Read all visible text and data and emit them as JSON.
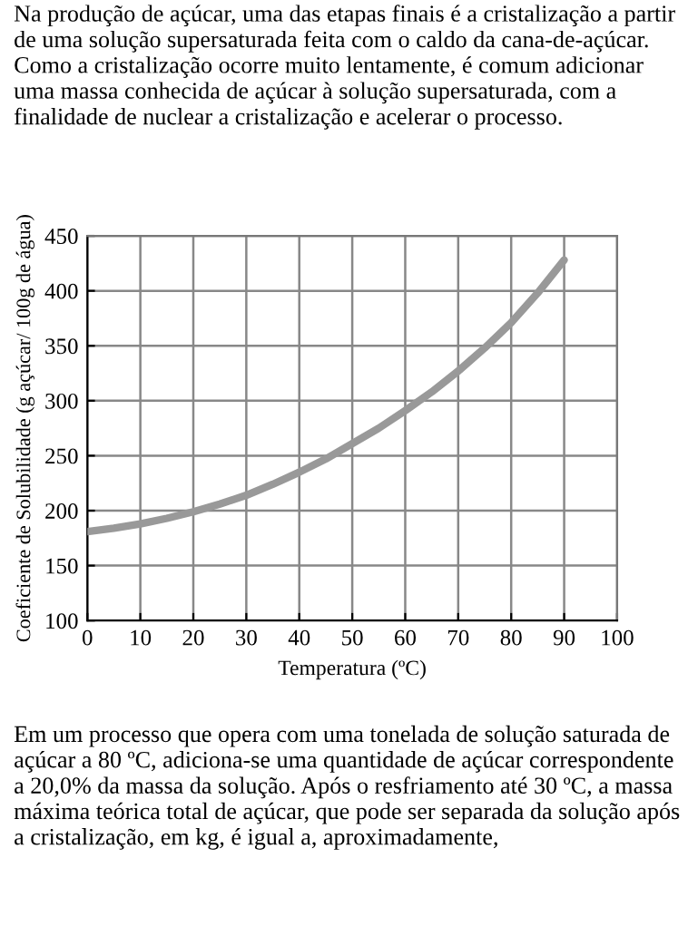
{
  "chart_data": {
    "type": "line",
    "xlabel": "Temperatura (ºC)",
    "ylabel": "Coeficiente de Solubilidade (g açúcar/ 100g de água)",
    "annotations": [
      "Na produção de açúcar, uma das etapas finais é a cristalização a partir de uma solução supersaturada feita com o caldo da cana-de-açúcar. Como a cristalização ocorre muito lentamente, é comum adicionar uma massa conhecida de açúcar à solução supersaturada, com a finalidade de nuclear a cristalização e acelerar o processo.",
      "Em um processo que opera com uma tonelada de solução saturada de açúcar a 80 ºC, adiciona-se uma quantidade de açúcar correspondente a 20,0% da massa da solução. Após o resfriamento até 30 ºC, a massa máxima teórica total de açúcar, que pode ser separada da solução após a cristalização, em kg, é igual a, aproximadamente,"
    ],
    "x": [
      0,
      5,
      10,
      15,
      20,
      25,
      30,
      35,
      40,
      45,
      50,
      55,
      60,
      65,
      70,
      75,
      80,
      85,
      90
    ],
    "series": [
      {
        "color": "#999999",
        "values": [
          181,
          184,
          188,
          193,
          199,
          206,
          214,
          224,
          235,
          247,
          261,
          275,
          291,
          308,
          327,
          348,
          371,
          398,
          428
        ]
      }
    ],
    "xlim": [
      0,
      100
    ],
    "xticks": [
      0,
      10,
      20,
      30,
      40,
      50,
      60,
      70,
      80,
      90,
      100
    ],
    "ylim": [
      100,
      450
    ],
    "yticks": [
      100,
      150,
      200,
      250,
      300,
      350,
      400,
      450
    ],
    "grid": true,
    "legend": false,
    "marker": "none",
    "line_style": "solid"
  }
}
